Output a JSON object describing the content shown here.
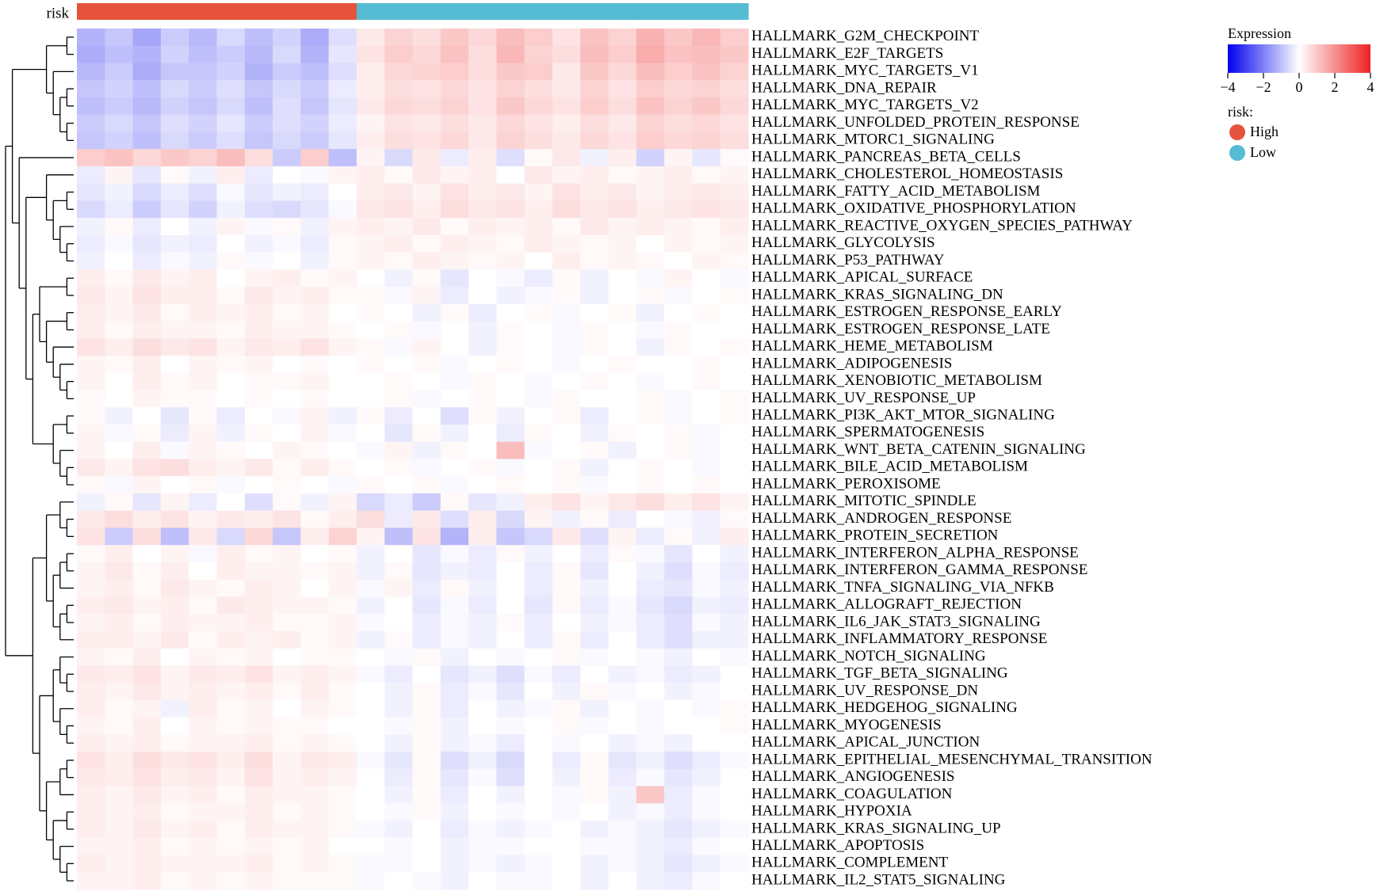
{
  "chart_data": {
    "type": "heatmap",
    "rows": [
      "HALLMARK_G2M_CHECKPOINT",
      "HALLMARK_E2F_TARGETS",
      "HALLMARK_MYC_TARGETS_V1",
      "HALLMARK_DNA_REPAIR",
      "HALLMARK_MYC_TARGETS_V2",
      "HALLMARK_UNFOLDED_PROTEIN_RESPONSE",
      "HALLMARK_MTORC1_SIGNALING",
      "HALLMARK_PANCREAS_BETA_CELLS",
      "HALLMARK_CHOLESTEROL_HOMEOSTASIS",
      "HALLMARK_FATTY_ACID_METABOLISM",
      "HALLMARK_OXIDATIVE_PHOSPHORYLATION",
      "HALLMARK_REACTIVE_OXYGEN_SPECIES_PATHWAY",
      "HALLMARK_GLYCOLYSIS",
      "HALLMARK_P53_PATHWAY",
      "HALLMARK_APICAL_SURFACE",
      "HALLMARK_KRAS_SIGNALING_DN",
      "HALLMARK_ESTROGEN_RESPONSE_EARLY",
      "HALLMARK_ESTROGEN_RESPONSE_LATE",
      "HALLMARK_HEME_METABOLISM",
      "HALLMARK_ADIPOGENESIS",
      "HALLMARK_XENOBIOTIC_METABOLISM",
      "HALLMARK_UV_RESPONSE_UP",
      "HALLMARK_PI3K_AKT_MTOR_SIGNALING",
      "HALLMARK_SPERMATOGENESIS",
      "HALLMARK_WNT_BETA_CATENIN_SIGNALING",
      "HALLMARK_BILE_ACID_METABOLISM",
      "HALLMARK_PEROXISOME",
      "HALLMARK_MITOTIC_SPINDLE",
      "HALLMARK_ANDROGEN_RESPONSE",
      "HALLMARK_PROTEIN_SECRETION",
      "HALLMARK_INTERFERON_ALPHA_RESPONSE",
      "HALLMARK_INTERFERON_GAMMA_RESPONSE",
      "HALLMARK_TNFA_SIGNALING_VIA_NFKB",
      "HALLMARK_ALLOGRAFT_REJECTION",
      "HALLMARK_IL6_JAK_STAT3_SIGNALING",
      "HALLMARK_INFLAMMATORY_RESPONSE",
      "HALLMARK_NOTCH_SIGNALING",
      "HALLMARK_TGF_BETA_SIGNALING",
      "HALLMARK_UV_RESPONSE_DN",
      "HALLMARK_HEDGEHOG_SIGNALING",
      "HALLMARK_MYOGENESIS",
      "HALLMARK_APICAL_JUNCTION",
      "HALLMARK_EPITHELIAL_MESENCHYMAL_TRANSITION",
      "HALLMARK_ANGIOGENESIS",
      "HALLMARK_COAGULATION",
      "HALLMARK_HYPOXIA",
      "HALLMARK_KRAS_SIGNALING_UP",
      "HALLMARK_APOPTOSIS",
      "HALLMARK_COMPLEMENT",
      "HALLMARK_IL2_STAT5_SIGNALING"
    ],
    "annotation": {
      "name": "risk",
      "legend_title": "risk:",
      "values": [
        "High",
        "High",
        "High",
        "High",
        "High",
        "High",
        "High",
        "High",
        "High",
        "High",
        "Low",
        "Low",
        "Low",
        "Low",
        "Low",
        "Low",
        "Low",
        "Low",
        "Low",
        "Low",
        "Low",
        "Low",
        "Low",
        "Low"
      ],
      "levels": [
        {
          "name": "High",
          "color": "#e5533c"
        },
        {
          "name": "Low",
          "color": "#55bcd3"
        }
      ]
    },
    "colorbar": {
      "title": "Expression",
      "zlim": [
        -4,
        4
      ],
      "colors": [
        "#0000ee",
        "#ffffff",
        "#ee2222"
      ],
      "zticks": [
        {
          "value": -4,
          "label": "−4"
        },
        {
          "value": -2,
          "label": "−2"
        },
        0,
        2,
        4
      ]
    },
    "values": [
      [
        -1.2,
        -0.9,
        -1.4,
        -0.8,
        -1.1,
        -0.6,
        -1.0,
        -0.7,
        -1.3,
        -0.5,
        0.4,
        0.8,
        0.6,
        1.0,
        0.7,
        1.2,
        0.9,
        0.5,
        1.1,
        0.8,
        1.4,
        1.0,
        1.3,
        0.9
      ],
      [
        -1.3,
        -1.0,
        -1.2,
        -0.7,
        -1.0,
        -0.8,
        -1.1,
        -0.6,
        -1.2,
        -0.4,
        0.5,
        0.9,
        0.7,
        1.1,
        0.6,
        1.3,
        0.8,
        0.6,
        1.2,
        0.9,
        1.5,
        1.1,
        1.2,
        1.0
      ],
      [
        -1.1,
        -0.8,
        -1.3,
        -0.9,
        -0.9,
        -0.7,
        -1.2,
        -0.8,
        -1.0,
        -0.5,
        0.3,
        0.7,
        0.8,
        0.9,
        0.6,
        1.0,
        0.9,
        0.4,
        1.0,
        0.7,
        1.2,
        0.9,
        1.1,
        0.8
      ],
      [
        -0.9,
        -0.7,
        -1.0,
        -0.6,
        -0.8,
        -0.5,
        -0.9,
        -0.6,
        -0.8,
        -0.3,
        0.3,
        0.6,
        0.5,
        0.7,
        0.5,
        0.8,
        0.6,
        0.4,
        0.8,
        0.5,
        0.9,
        0.7,
        0.8,
        0.6
      ],
      [
        -1.0,
        -0.8,
        -1.1,
        -0.7,
        -0.9,
        -0.6,
        -1.0,
        -0.5,
        -0.9,
        -0.4,
        0.4,
        0.7,
        0.6,
        0.8,
        0.5,
        1.0,
        0.7,
        0.5,
        0.9,
        0.6,
        1.1,
        0.8,
        1.0,
        0.7
      ],
      [
        -0.8,
        -0.6,
        -0.9,
        -0.5,
        -0.7,
        -0.4,
        -0.8,
        -0.5,
        -0.7,
        -0.3,
        0.2,
        0.5,
        0.4,
        0.6,
        0.4,
        0.7,
        0.5,
        0.3,
        0.6,
        0.4,
        0.8,
        0.6,
        0.7,
        0.5
      ],
      [
        -0.9,
        -0.7,
        -1.0,
        -0.6,
        -0.8,
        -0.5,
        -0.9,
        -0.6,
        -0.8,
        -0.4,
        0.3,
        0.6,
        0.5,
        0.7,
        0.4,
        0.8,
        0.6,
        0.4,
        0.7,
        0.5,
        0.9,
        0.7,
        0.8,
        0.6
      ],
      [
        0.9,
        1.1,
        0.7,
        1.0,
        0.8,
        1.2,
        0.6,
        -0.8,
        0.9,
        -1.0,
        0.2,
        -0.6,
        0.4,
        -0.3,
        0.3,
        -0.5,
        0.1,
        0.4,
        -0.2,
        0.3,
        -0.7,
        0.2,
        -0.4,
        0.1
      ],
      [
        -0.3,
        0.2,
        -0.4,
        0.1,
        -0.2,
        0.3,
        -0.3,
        0.0,
        -0.1,
        0.2,
        0.3,
        0.1,
        0.4,
        0.2,
        0.3,
        0.0,
        0.4,
        0.2,
        0.3,
        0.1,
        0.2,
        0.3,
        0.1,
        0.2
      ],
      [
        -0.4,
        -0.2,
        -0.6,
        -0.3,
        -0.5,
        -0.1,
        -0.4,
        -0.2,
        -0.3,
        0.0,
        0.3,
        0.4,
        0.2,
        0.5,
        0.3,
        0.4,
        0.2,
        0.5,
        0.3,
        0.4,
        0.2,
        0.3,
        0.4,
        0.3
      ],
      [
        -0.6,
        -0.3,
        -0.8,
        -0.4,
        -0.7,
        -0.2,
        -0.5,
        -0.6,
        -0.4,
        -0.1,
        0.4,
        0.5,
        0.3,
        0.6,
        0.4,
        0.5,
        0.3,
        0.6,
        0.4,
        0.5,
        0.3,
        0.4,
        0.5,
        0.4
      ],
      [
        -0.2,
        0.1,
        -0.3,
        0.0,
        -0.2,
        0.2,
        -0.1,
        0.1,
        -0.2,
        0.2,
        0.3,
        0.2,
        0.4,
        0.1,
        0.3,
        0.2,
        0.3,
        0.1,
        0.4,
        0.2,
        0.3,
        0.2,
        0.1,
        0.3
      ],
      [
        -0.3,
        -0.1,
        -0.4,
        -0.2,
        -0.3,
        0.0,
        -0.2,
        -0.1,
        -0.3,
        0.1,
        0.2,
        0.3,
        0.1,
        0.3,
        0.2,
        0.1,
        0.3,
        0.2,
        0.1,
        0.2,
        0.0,
        0.2,
        0.1,
        0.2
      ],
      [
        -0.2,
        0.0,
        -0.3,
        -0.1,
        -0.2,
        0.1,
        -0.1,
        0.0,
        -0.2,
        0.1,
        0.2,
        0.1,
        0.3,
        0.2,
        0.1,
        0.2,
        0.0,
        0.3,
        0.1,
        0.2,
        0.1,
        0.0,
        0.2,
        0.1
      ],
      [
        0.3,
        0.1,
        0.4,
        0.2,
        0.3,
        0.0,
        0.2,
        0.3,
        0.1,
        0.2,
        0.0,
        -0.2,
        0.1,
        -0.4,
        0.0,
        -0.1,
        -0.3,
        0.1,
        -0.2,
        0.0,
        -0.1,
        0.2,
        0.0,
        -0.1
      ],
      [
        0.4,
        0.2,
        0.5,
        0.3,
        0.3,
        0.1,
        0.4,
        0.2,
        0.3,
        0.1,
        0.1,
        -0.1,
        0.2,
        -0.3,
        0.0,
        -0.2,
        -0.1,
        0.1,
        -0.2,
        0.0,
        0.1,
        -0.1,
        0.0,
        0.1
      ],
      [
        0.3,
        0.2,
        0.4,
        0.1,
        0.3,
        0.2,
        0.3,
        0.1,
        0.2,
        0.0,
        0.1,
        0.0,
        -0.2,
        0.1,
        -0.3,
        0.0,
        0.1,
        -0.1,
        0.0,
        0.1,
        -0.2,
        0.0,
        0.1,
        0.0
      ],
      [
        0.3,
        0.1,
        0.3,
        0.2,
        0.2,
        0.1,
        0.3,
        0.2,
        0.2,
        0.1,
        0.0,
        0.1,
        -0.1,
        0.0,
        -0.2,
        0.1,
        0.0,
        -0.1,
        0.1,
        0.0,
        -0.1,
        0.1,
        0.0,
        0.0
      ],
      [
        0.5,
        0.3,
        0.6,
        0.4,
        0.5,
        0.2,
        0.4,
        0.3,
        0.5,
        0.2,
        0.1,
        -0.1,
        0.2,
        0.0,
        -0.2,
        0.1,
        0.0,
        -0.1,
        0.1,
        0.0,
        -0.2,
        0.1,
        0.0,
        0.1
      ],
      [
        0.2,
        0.1,
        0.3,
        0.0,
        0.2,
        0.1,
        0.2,
        0.0,
        0.1,
        0.0,
        0.1,
        0.0,
        0.1,
        -0.1,
        0.0,
        0.1,
        0.0,
        -0.1,
        0.0,
        0.1,
        0.0,
        0.0,
        0.1,
        0.0
      ],
      [
        0.2,
        0.0,
        0.3,
        0.1,
        0.2,
        0.0,
        0.1,
        0.1,
        0.2,
        0.0,
        0.0,
        0.1,
        0.0,
        -0.1,
        0.1,
        0.0,
        -0.1,
        0.0,
        0.1,
        0.0,
        -0.1,
        0.0,
        0.1,
        0.0
      ],
      [
        0.1,
        0.0,
        0.2,
        0.1,
        0.1,
        0.0,
        0.1,
        0.0,
        0.1,
        0.0,
        0.0,
        0.1,
        -0.1,
        0.0,
        0.1,
        0.0,
        -0.1,
        0.1,
        0.0,
        0.0,
        0.1,
        -0.1,
        0.0,
        0.1
      ],
      [
        0.1,
        -0.2,
        0.0,
        -0.4,
        0.1,
        -0.3,
        0.0,
        -0.1,
        0.2,
        -0.2,
        0.1,
        -0.3,
        0.0,
        -0.5,
        0.1,
        -0.2,
        0.0,
        0.1,
        -0.3,
        0.0,
        0.1,
        -0.1,
        0.0,
        0.1
      ],
      [
        0.2,
        -0.1,
        0.1,
        -0.3,
        0.2,
        -0.2,
        0.1,
        0.0,
        0.2,
        -0.1,
        0.0,
        -0.4,
        0.1,
        -0.2,
        0.0,
        -0.3,
        0.1,
        0.0,
        -0.2,
        0.1,
        0.0,
        0.1,
        -0.1,
        0.0
      ],
      [
        0.2,
        0.0,
        0.3,
        -0.1,
        0.2,
        0.1,
        0.0,
        0.2,
        0.1,
        0.0,
        -0.1,
        0.2,
        -0.2,
        0.1,
        0.0,
        1.2,
        -0.1,
        0.0,
        0.1,
        -0.2,
        0.0,
        0.1,
        -0.1,
        0.0
      ],
      [
        0.4,
        0.2,
        0.5,
        0.6,
        0.3,
        0.2,
        0.4,
        0.1,
        0.3,
        0.1,
        0.0,
        0.1,
        -0.1,
        0.0,
        0.1,
        -0.1,
        0.0,
        0.1,
        -0.2,
        0.0,
        0.1,
        0.0,
        -0.1,
        0.0
      ],
      [
        0.1,
        -0.1,
        0.2,
        0.0,
        0.1,
        -0.1,
        0.0,
        0.1,
        0.0,
        -0.1,
        0.1,
        0.0,
        0.1,
        -0.1,
        0.0,
        0.1,
        0.0,
        0.1,
        -0.1,
        0.0,
        0.1,
        0.0,
        0.1,
        0.0
      ],
      [
        -0.2,
        0.1,
        -0.4,
        0.2,
        -0.3,
        0.0,
        -0.5,
        0.1,
        -0.2,
        0.2,
        -0.6,
        -0.3,
        -0.8,
        0.1,
        -0.4,
        -0.2,
        0.3,
        0.5,
        0.2,
        0.4,
        0.6,
        0.3,
        0.5,
        0.2
      ],
      [
        0.4,
        0.6,
        0.3,
        0.5,
        0.2,
        0.4,
        0.3,
        0.5,
        0.1,
        0.3,
        0.6,
        -0.3,
        0.4,
        -0.5,
        0.3,
        -0.6,
        0.2,
        -0.2,
        0.1,
        -0.3,
        0.0,
        -0.1,
        -0.2,
        0.1
      ],
      [
        0.5,
        -0.8,
        0.6,
        -1.0,
        0.4,
        -0.6,
        0.7,
        -0.9,
        0.3,
        0.8,
        0.2,
        -1.0,
        0.5,
        -1.2,
        0.3,
        -0.9,
        -0.6,
        0.4,
        -0.5,
        0.2,
        -0.3,
        0.1,
        -0.2,
        0.3
      ],
      [
        0.1,
        0.3,
        0.0,
        0.2,
        -0.1,
        0.3,
        0.1,
        0.2,
        0.0,
        0.1,
        -0.2,
        0.0,
        -0.4,
        -0.1,
        -0.3,
        0.1,
        -0.2,
        0.0,
        -0.3,
        0.1,
        -0.1,
        -0.4,
        0.0,
        -0.2
      ],
      [
        0.2,
        0.4,
        0.1,
        0.3,
        0.0,
        0.3,
        0.2,
        0.2,
        0.1,
        0.2,
        -0.2,
        0.1,
        -0.4,
        -0.2,
        -0.3,
        0.0,
        -0.3,
        0.1,
        -0.4,
        0.0,
        -0.2,
        -0.5,
        -0.1,
        -0.3
      ],
      [
        0.2,
        0.3,
        0.1,
        0.4,
        0.2,
        0.1,
        0.3,
        0.2,
        0.0,
        0.2,
        -0.1,
        0.2,
        -0.3,
        0.1,
        -0.2,
        0.0,
        -0.3,
        0.1,
        -0.2,
        0.0,
        -0.3,
        -0.4,
        -0.1,
        -0.2
      ],
      [
        0.3,
        0.4,
        0.2,
        0.3,
        0.1,
        0.4,
        0.3,
        0.2,
        0.2,
        0.1,
        -0.2,
        0.0,
        -0.4,
        -0.1,
        -0.3,
        0.0,
        -0.4,
        0.1,
        -0.3,
        -0.1,
        -0.4,
        -0.6,
        -0.2,
        -0.3
      ],
      [
        0.2,
        0.3,
        0.1,
        0.3,
        0.2,
        0.2,
        0.3,
        0.1,
        0.1,
        0.2,
        -0.1,
        0.0,
        -0.3,
        -0.1,
        -0.2,
        0.1,
        -0.3,
        0.0,
        -0.2,
        -0.1,
        -0.3,
        -0.5,
        -0.1,
        -0.2
      ],
      [
        0.3,
        0.3,
        0.2,
        0.4,
        0.1,
        0.3,
        0.2,
        0.3,
        0.1,
        0.2,
        -0.2,
        0.1,
        -0.3,
        -0.1,
        -0.2,
        0.0,
        -0.3,
        0.1,
        -0.3,
        0.0,
        -0.3,
        -0.5,
        -0.2,
        -0.2
      ],
      [
        0.2,
        0.1,
        0.3,
        0.0,
        0.2,
        0.1,
        0.2,
        0.0,
        0.1,
        0.1,
        0.0,
        -0.1,
        0.1,
        -0.2,
        0.0,
        -0.1,
        0.0,
        0.1,
        -0.1,
        0.0,
        -0.1,
        -0.2,
        0.0,
        -0.1
      ],
      [
        0.4,
        0.3,
        0.5,
        0.2,
        0.4,
        0.3,
        0.5,
        0.2,
        0.3,
        0.2,
        -0.1,
        -0.3,
        0.0,
        -0.4,
        -0.2,
        -0.5,
        -0.1,
        -0.3,
        0.0,
        -0.2,
        -0.1,
        -0.3,
        -0.2,
        0.0
      ],
      [
        0.3,
        0.2,
        0.4,
        0.2,
        0.3,
        0.2,
        0.3,
        0.1,
        0.3,
        0.1,
        0.0,
        -0.2,
        0.1,
        -0.3,
        -0.1,
        -0.4,
        0.0,
        -0.2,
        0.1,
        -0.1,
        0.0,
        -0.2,
        -0.1,
        0.0
      ],
      [
        0.3,
        0.1,
        0.2,
        -0.2,
        0.3,
        0.1,
        0.2,
        0.0,
        0.2,
        0.1,
        0.0,
        -0.2,
        0.1,
        -0.3,
        0.0,
        -0.2,
        -0.1,
        0.1,
        -0.2,
        0.0,
        -0.1,
        0.0,
        -0.1,
        0.1
      ],
      [
        0.2,
        0.1,
        0.3,
        0.0,
        0.2,
        0.1,
        0.2,
        0.1,
        0.1,
        0.0,
        0.0,
        -0.1,
        0.1,
        -0.2,
        0.0,
        -0.1,
        0.0,
        0.1,
        -0.1,
        0.0,
        -0.1,
        0.0,
        0.0,
        0.1
      ],
      [
        0.3,
        0.2,
        0.3,
        0.1,
        0.2,
        0.2,
        0.3,
        0.1,
        0.2,
        0.1,
        0.0,
        -0.2,
        0.1,
        -0.2,
        -0.1,
        -0.3,
        0.0,
        -0.1,
        0.0,
        -0.2,
        -0.1,
        -0.2,
        0.0,
        0.0
      ],
      [
        0.5,
        0.3,
        0.6,
        0.4,
        0.5,
        0.3,
        0.6,
        0.2,
        0.4,
        0.3,
        -0.1,
        -0.4,
        0.1,
        -0.5,
        -0.2,
        -0.6,
        0.0,
        -0.3,
        0.1,
        -0.4,
        -0.2,
        -0.5,
        -0.3,
        -0.1
      ],
      [
        0.4,
        0.3,
        0.5,
        0.3,
        0.4,
        0.2,
        0.5,
        0.2,
        0.3,
        0.2,
        0.0,
        -0.3,
        0.1,
        -0.4,
        -0.1,
        -0.5,
        0.0,
        -0.2,
        0.1,
        -0.3,
        -0.1,
        -0.4,
        -0.2,
        0.0
      ],
      [
        0.3,
        0.2,
        0.4,
        0.2,
        0.3,
        0.1,
        0.3,
        0.2,
        0.2,
        0.1,
        0.0,
        -0.2,
        0.1,
        -0.3,
        0.0,
        -0.2,
        0.0,
        -0.1,
        0.1,
        -0.2,
        1.0,
        -0.3,
        -0.1,
        0.0
      ],
      [
        0.3,
        0.2,
        0.3,
        0.1,
        0.2,
        0.2,
        0.3,
        0.1,
        0.2,
        0.1,
        0.0,
        -0.1,
        0.1,
        -0.2,
        0.0,
        -0.1,
        0.0,
        -0.1,
        0.0,
        -0.2,
        -0.1,
        -0.3,
        -0.1,
        0.0
      ],
      [
        0.3,
        0.2,
        0.4,
        0.2,
        0.3,
        0.1,
        0.3,
        0.2,
        0.2,
        0.1,
        -0.1,
        -0.2,
        0.0,
        -0.3,
        -0.1,
        -0.2,
        -0.1,
        0.0,
        -0.2,
        -0.1,
        -0.2,
        -0.4,
        -0.2,
        -0.1
      ],
      [
        0.2,
        0.2,
        0.3,
        0.1,
        0.2,
        0.1,
        0.2,
        0.1,
        0.2,
        0.0,
        0.0,
        -0.1,
        0.0,
        -0.2,
        -0.1,
        -0.1,
        0.0,
        0.0,
        -0.1,
        -0.1,
        -0.2,
        -0.3,
        -0.1,
        0.0
      ],
      [
        0.3,
        0.2,
        0.3,
        0.2,
        0.2,
        0.2,
        0.3,
        0.1,
        0.2,
        0.1,
        -0.1,
        -0.1,
        0.0,
        -0.2,
        -0.1,
        -0.2,
        -0.1,
        0.0,
        -0.2,
        -0.1,
        -0.2,
        -0.4,
        -0.2,
        -0.1
      ],
      [
        0.2,
        0.2,
        0.3,
        0.1,
        0.2,
        0.1,
        0.2,
        0.1,
        0.1,
        0.1,
        -0.1,
        0.0,
        -0.1,
        -0.2,
        0.0,
        -0.1,
        -0.1,
        0.0,
        -0.2,
        0.0,
        -0.2,
        -0.3,
        -0.1,
        0.0
      ]
    ]
  }
}
